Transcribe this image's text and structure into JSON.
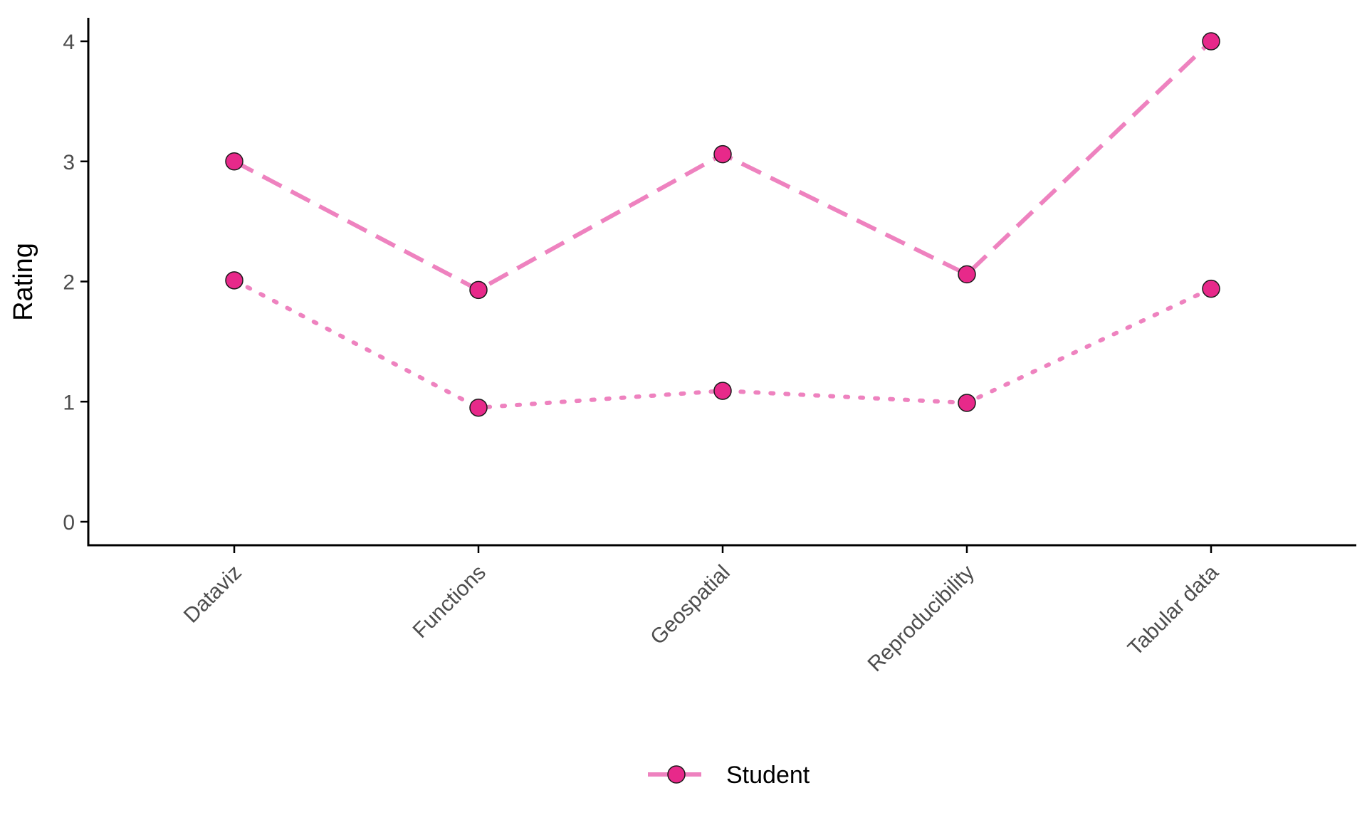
{
  "chart_data": {
    "type": "line",
    "categories": [
      "Dataviz",
      "Functions",
      "Geospatial",
      "Reproducibility",
      "Tabular data"
    ],
    "series": [
      {
        "line_style": "dashed",
        "values": [
          3.0,
          1.93,
          3.06,
          2.06,
          4.0
        ]
      },
      {
        "line_style": "dotted",
        "values": [
          2.01,
          0.95,
          1.09,
          0.99,
          1.94
        ]
      }
    ],
    "xlabel": "",
    "ylabel": "Rating",
    "ylim": [
      0,
      4
    ],
    "yticks": [
      0,
      1,
      2,
      3,
      4
    ],
    "grid": false,
    "legend": {
      "position": "bottom",
      "entries": [
        "Student"
      ]
    },
    "colors": {
      "line": "#ee82bf",
      "point_fill": "#e7298a",
      "point_stroke": "#1a1a1a",
      "axis": "#000000"
    }
  }
}
